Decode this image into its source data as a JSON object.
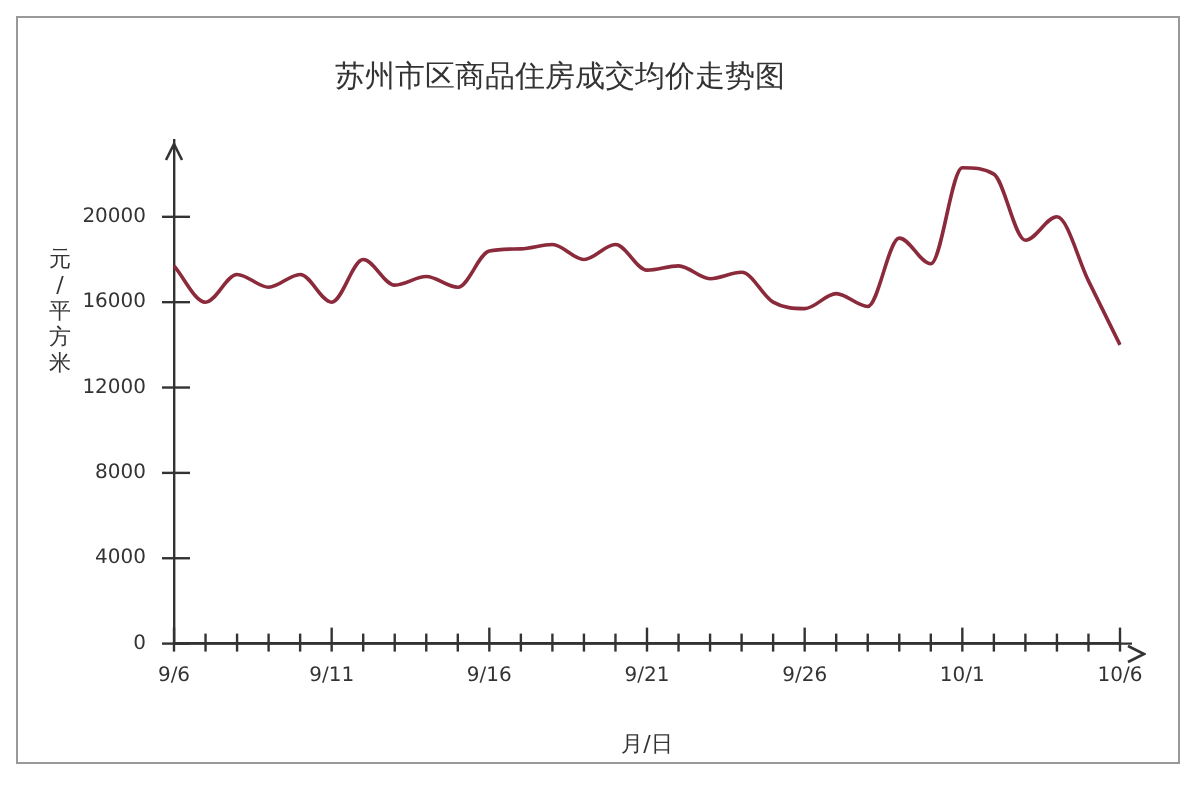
{
  "chart_data": {
    "type": "line",
    "title": "苏州市区商品住房成交均价走势图",
    "xlabel": "月/日",
    "ylabel": "元/平方米",
    "categories": [
      "9/6",
      null,
      null,
      null,
      null,
      "9/11",
      null,
      null,
      null,
      null,
      "9/16",
      null,
      null,
      null,
      null,
      "9/21",
      null,
      null,
      null,
      null,
      "9/26",
      null,
      null,
      null,
      null,
      "10/1",
      null,
      null,
      null,
      null,
      "10/6"
    ],
    "series": [
      {
        "color": "#8b2a3a",
        "values": [
          17700,
          16000,
          17300,
          16700,
          17300,
          16000,
          18000,
          16800,
          17200,
          16700,
          18400,
          18500,
          18700,
          18000,
          18700,
          17500,
          17700,
          17100,
          17400,
          16000,
          15700,
          16400,
          15800,
          19000,
          17800,
          22300,
          22000,
          18900,
          20000,
          17000,
          14000
        ]
      }
    ],
    "ylim": [
      0,
      23600
    ],
    "yticks": [
      0,
      4000,
      8000,
      12000,
      16000,
      20000
    ],
    "grid": false,
    "legend": false,
    "marker": "none",
    "line_style": "solid"
  }
}
